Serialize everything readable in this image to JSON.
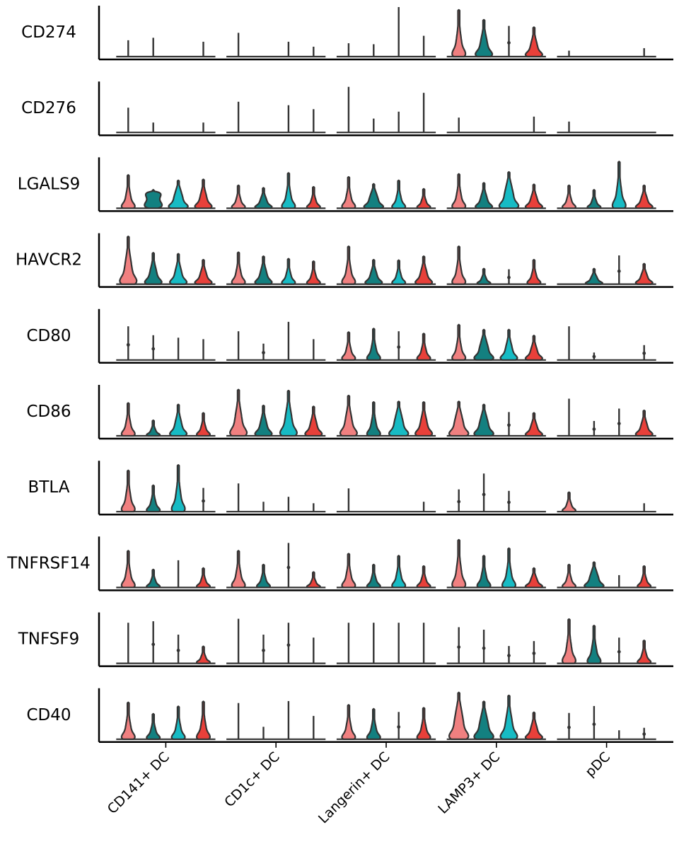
{
  "chart_data": {
    "type": "violin",
    "genes": [
      "CD274",
      "CD276",
      "LGALS9",
      "HAVCR2",
      "CD80",
      "CD86",
      "BTLA",
      "TNFRSF14",
      "TNFSF9",
      "CD40"
    ],
    "categories": [
      "CD141+ DC",
      "CD1c+ DC",
      "Langerin+ DC",
      "LAMP3+ DC",
      "pDC"
    ],
    "fill_colors": [
      "#F08080",
      "#138080",
      "#17BBC4",
      "#E8403A"
    ],
    "violins": [
      [
        [
          [
            "l",
            0.33
          ],
          [
            "l",
            0.38
          ],
          [
            "n"
          ],
          [
            "l",
            0.3
          ]
        ],
        [
          [
            "l",
            0.48
          ],
          [
            "n"
          ],
          [
            "l",
            0.3
          ],
          [
            "l",
            0.2
          ]
        ],
        [
          [
            "l",
            0.27
          ],
          [
            "l",
            0.25
          ],
          [
            "l",
            1.0
          ],
          [
            "l",
            0.42
          ]
        ],
        [
          [
            "b",
            0.93,
            "nar"
          ],
          [
            "b",
            0.73,
            "mid"
          ],
          [
            "l",
            0.62,
            "dot"
          ],
          [
            "b",
            0.58,
            "mid"
          ]
        ],
        [
          [
            "l",
            0.12
          ],
          [
            "n"
          ],
          [
            "n"
          ],
          [
            "l",
            0.17
          ]
        ]
      ],
      [
        [
          [
            "l",
            0.5
          ],
          [
            "l",
            0.2
          ],
          [
            "n"
          ],
          [
            "l",
            0.2
          ]
        ],
        [
          [
            "l",
            0.62
          ],
          [
            "n"
          ],
          [
            "l",
            0.55
          ],
          [
            "l",
            0.47
          ]
        ],
        [
          [
            "l",
            0.92
          ],
          [
            "l",
            0.28
          ],
          [
            "l",
            0.42
          ],
          [
            "l",
            0.8
          ]
        ],
        [
          [
            "l",
            0.3
          ],
          [
            "n"
          ],
          [
            "n"
          ],
          [
            "l",
            0.32
          ]
        ],
        [
          [
            "l",
            0.22
          ],
          [
            "n"
          ],
          [
            "n"
          ],
          [
            "n"
          ]
        ]
      ],
      [
        [
          [
            "b",
            0.66,
            "nar"
          ],
          [
            "b",
            0.36,
            "hour"
          ],
          [
            "b",
            0.55,
            "wide"
          ],
          [
            "b",
            0.57,
            "mid"
          ]
        ],
        [
          [
            "b",
            0.45,
            "nar"
          ],
          [
            "b",
            0.4,
            "mid"
          ],
          [
            "b",
            0.7,
            "nar"
          ],
          [
            "b",
            0.42,
            "nar"
          ]
        ],
        [
          [
            "b",
            0.62,
            "nar"
          ],
          [
            "b",
            0.48,
            "wide"
          ],
          [
            "b",
            0.55,
            "nar"
          ],
          [
            "b",
            0.38,
            "nar"
          ]
        ],
        [
          [
            "b",
            0.68,
            "nar"
          ],
          [
            "b",
            0.5,
            "mid"
          ],
          [
            "b",
            0.72,
            "wide"
          ],
          [
            "b",
            0.47,
            "mid"
          ]
        ],
        [
          [
            "b",
            0.45,
            "nar"
          ],
          [
            "b",
            0.36,
            "nar"
          ],
          [
            "b",
            0.93,
            "nar"
          ],
          [
            "b",
            0.45,
            "mid"
          ]
        ]
      ],
      [
        [
          [
            "b",
            0.95,
            "mid"
          ],
          [
            "b",
            0.62,
            "mid"
          ],
          [
            "b",
            0.6,
            "mid"
          ],
          [
            "b",
            0.48,
            "mid"
          ]
        ],
        [
          [
            "b",
            0.63,
            "nar"
          ],
          [
            "b",
            0.55,
            "mid"
          ],
          [
            "b",
            0.5,
            "nar"
          ],
          [
            "b",
            0.45,
            "nar"
          ]
        ],
        [
          [
            "b",
            0.75,
            "nar"
          ],
          [
            "b",
            0.48,
            "mid"
          ],
          [
            "b",
            0.47,
            "nar"
          ],
          [
            "b",
            0.55,
            "mid"
          ]
        ],
        [
          [
            "b",
            0.75,
            "nar"
          ],
          [
            "b",
            0.3,
            "nar"
          ],
          [
            "l",
            0.3,
            "dot"
          ],
          [
            "b",
            0.48,
            "nar"
          ]
        ],
        [
          [
            "n"
          ],
          [
            "b",
            0.3,
            "mid"
          ],
          [
            "l",
            0.58,
            "dot"
          ],
          [
            "b",
            0.4,
            "mid"
          ]
        ]
      ],
      [
        [
          [
            "l",
            0.68,
            "dot"
          ],
          [
            "l",
            0.5,
            "dot"
          ],
          [
            "l",
            0.45
          ],
          [
            "l",
            0.42
          ]
        ],
        [
          [
            "l",
            0.58
          ],
          [
            "l",
            0.33,
            "dot"
          ],
          [
            "l",
            0.77
          ],
          [
            "l",
            0.42
          ]
        ],
        [
          [
            "b",
            0.55,
            "nar"
          ],
          [
            "b",
            0.62,
            "nar"
          ],
          [
            "l",
            0.58,
            "dot"
          ],
          [
            "b",
            0.52,
            "nar"
          ]
        ],
        [
          [
            "b",
            0.7,
            "nar"
          ],
          [
            "b",
            0.6,
            "wide"
          ],
          [
            "b",
            0.6,
            "mid"
          ],
          [
            "b",
            0.48,
            "mid"
          ]
        ],
        [
          [
            "l",
            0.68
          ],
          [
            "l",
            0.15,
            "dot"
          ],
          [
            "n"
          ],
          [
            "l",
            0.3,
            "dot"
          ]
        ]
      ],
      [
        [
          [
            "b",
            0.65,
            "nar"
          ],
          [
            "b",
            0.3,
            "nar"
          ],
          [
            "b",
            0.62,
            "mid"
          ],
          [
            "b",
            0.45,
            "nar"
          ]
        ],
        [
          [
            "b",
            0.92,
            "mid"
          ],
          [
            "b",
            0.6,
            "mid"
          ],
          [
            "b",
            0.9,
            "mid"
          ],
          [
            "b",
            0.58,
            "mid"
          ]
        ],
        [
          [
            "b",
            0.8,
            "mid"
          ],
          [
            "b",
            0.67,
            "nar"
          ],
          [
            "b",
            0.68,
            "wide"
          ],
          [
            "b",
            0.67,
            "mid"
          ]
        ],
        [
          [
            "b",
            0.68,
            "wide"
          ],
          [
            "b",
            0.62,
            "wide"
          ],
          [
            "l",
            0.48,
            "dot"
          ],
          [
            "b",
            0.45,
            "mid"
          ]
        ],
        [
          [
            "l",
            0.75
          ],
          [
            "l",
            0.3,
            "dot"
          ],
          [
            "l",
            0.55,
            "dot"
          ],
          [
            "b",
            0.5,
            "mid"
          ]
        ]
      ],
      [
        [
          [
            "b",
            0.82,
            "nar"
          ],
          [
            "b",
            0.52,
            "nar"
          ],
          [
            "b",
            0.93,
            "nar"
          ],
          [
            "l",
            0.48,
            "dot"
          ]
        ],
        [
          [
            "l",
            0.57
          ],
          [
            "l",
            0.2
          ],
          [
            "l",
            0.3
          ],
          [
            "l",
            0.17
          ]
        ],
        [
          [
            "l",
            0.47
          ],
          [
            "n"
          ],
          [
            "n"
          ],
          [
            "l",
            0.2
          ]
        ],
        [
          [
            "l",
            0.45,
            "dot"
          ],
          [
            "l",
            0.77,
            "dot"
          ],
          [
            "l",
            0.42,
            "dot"
          ],
          [
            "n"
          ]
        ],
        [
          [
            "b",
            0.38,
            "nar"
          ],
          [
            "n"
          ],
          [
            "n"
          ],
          [
            "l",
            0.17
          ]
        ]
      ],
      [
        [
          [
            "b",
            0.73,
            "nar"
          ],
          [
            "b",
            0.35,
            "nar"
          ],
          [
            "l",
            0.55
          ],
          [
            "b",
            0.38,
            "nar"
          ]
        ],
        [
          [
            "b",
            0.73,
            "nar"
          ],
          [
            "b",
            0.45,
            "nar"
          ],
          [
            "l",
            0.9,
            "dot"
          ],
          [
            "b",
            0.3,
            "nar"
          ]
        ],
        [
          [
            "b",
            0.67,
            "nar"
          ],
          [
            "b",
            0.45,
            "nar"
          ],
          [
            "b",
            0.63,
            "nar"
          ],
          [
            "b",
            0.42,
            "nar"
          ]
        ],
        [
          [
            "b",
            0.95,
            "nar"
          ],
          [
            "b",
            0.63,
            "nar"
          ],
          [
            "b",
            0.78,
            "nar"
          ],
          [
            "b",
            0.38,
            "mid"
          ]
        ],
        [
          [
            "b",
            0.45,
            "nar"
          ],
          [
            "b",
            0.5,
            "wide"
          ],
          [
            "l",
            0.25
          ],
          [
            "b",
            0.42,
            "nar"
          ]
        ]
      ],
      [
        [
          [
            "l",
            0.82
          ],
          [
            "l",
            0.85,
            "dot"
          ],
          [
            "l",
            0.58,
            "dot"
          ],
          [
            "b",
            0.33,
            "nar"
          ]
        ],
        [
          [
            "l",
            0.9
          ],
          [
            "l",
            0.58,
            "dot"
          ],
          [
            "l",
            0.82,
            "dot"
          ],
          [
            "l",
            0.52
          ]
        ],
        [
          [
            "l",
            0.82
          ],
          [
            "l",
            0.82
          ],
          [
            "l",
            0.82
          ],
          [
            "l",
            0.82
          ]
        ],
        [
          [
            "l",
            0.73,
            "dot"
          ],
          [
            "l",
            0.68,
            "dot"
          ],
          [
            "l",
            0.35,
            "dot"
          ],
          [
            "l",
            0.45,
            "dot"
          ]
        ],
        [
          [
            "b",
            0.88,
            "nar"
          ],
          [
            "b",
            0.75,
            "nar"
          ],
          [
            "l",
            0.52,
            "dot"
          ],
          [
            "b",
            0.45,
            "nar"
          ]
        ]
      ],
      [
        [
          [
            "b",
            0.73,
            "nar"
          ],
          [
            "b",
            0.5,
            "nar"
          ],
          [
            "b",
            0.65,
            "nar"
          ],
          [
            "b",
            0.75,
            "nar"
          ]
        ],
        [
          [
            "l",
            0.73
          ],
          [
            "l",
            0.25
          ],
          [
            "l",
            0.77
          ],
          [
            "l",
            0.47
          ]
        ],
        [
          [
            "b",
            0.68,
            "nar"
          ],
          [
            "b",
            0.6,
            "nar"
          ],
          [
            "l",
            0.55,
            "dot"
          ],
          [
            "b",
            0.62,
            "nar"
          ]
        ],
        [
          [
            "b",
            0.93,
            "wide"
          ],
          [
            "b",
            0.75,
            "wide"
          ],
          [
            "b",
            0.87,
            "mid"
          ],
          [
            "b",
            0.53,
            "mid"
          ]
        ],
        [
          [
            "l",
            0.53,
            "dot"
          ],
          [
            "l",
            0.67,
            "dot"
          ],
          [
            "l",
            0.18
          ],
          [
            "l",
            0.23,
            "dot"
          ]
        ]
      ]
    ]
  }
}
